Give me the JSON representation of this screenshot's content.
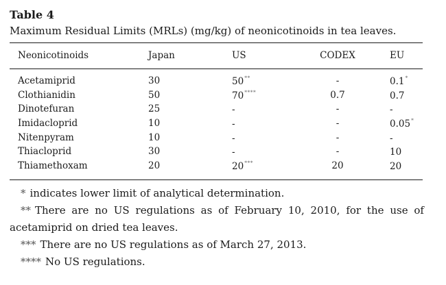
{
  "table": {
    "label": "Table 4",
    "title": "Maximum Residual Limits (MRLs) (mg/kg) of neonicotinoids in tea leaves.",
    "columns": [
      "Neonicotinoids",
      "Japan",
      "US",
      "CODEX",
      "EU"
    ],
    "rows": [
      {
        "name": "Acetamiprid",
        "japan": "30",
        "us": "50",
        "us_mark": "**",
        "codex": "-",
        "eu": "0.1",
        "eu_mark": "*"
      },
      {
        "name": "Clothianidin",
        "japan": "50",
        "us": "70",
        "us_mark": "****",
        "codex": "0.7",
        "eu": "0.7",
        "eu_mark": ""
      },
      {
        "name": "Dinotefuran",
        "japan": "25",
        "us": "-",
        "us_mark": "",
        "codex": "-",
        "eu": "-",
        "eu_mark": ""
      },
      {
        "name": "Imidacloprid",
        "japan": "10",
        "us": "-",
        "us_mark": "",
        "codex": "-",
        "eu": "0.05",
        "eu_mark": "*"
      },
      {
        "name": "Nitenpyram",
        "japan": "10",
        "us": "-",
        "us_mark": "",
        "codex": "-",
        "eu": "-",
        "eu_mark": ""
      },
      {
        "name": "Thiacloprid",
        "japan": "30",
        "us": "-",
        "us_mark": "",
        "codex": "-",
        "eu": "10",
        "eu_mark": ""
      },
      {
        "name": "Thiamethoxam",
        "japan": "20",
        "us": "20",
        "us_mark": "***",
        "codex": "20",
        "eu": "20",
        "eu_mark": ""
      }
    ]
  },
  "footnotes": [
    {
      "mark": "*",
      "text": "indicates lower limit of analytical determination."
    },
    {
      "mark": "**",
      "text_line1": "There are no US regulations as of February 10, 2010, for the use of",
      "text_line2": "acetamiprid on dried tea leaves."
    },
    {
      "mark": "***",
      "text": "There are no US regulations as of March 27, 2013."
    },
    {
      "mark": "****",
      "text": "No US regulations."
    }
  ]
}
